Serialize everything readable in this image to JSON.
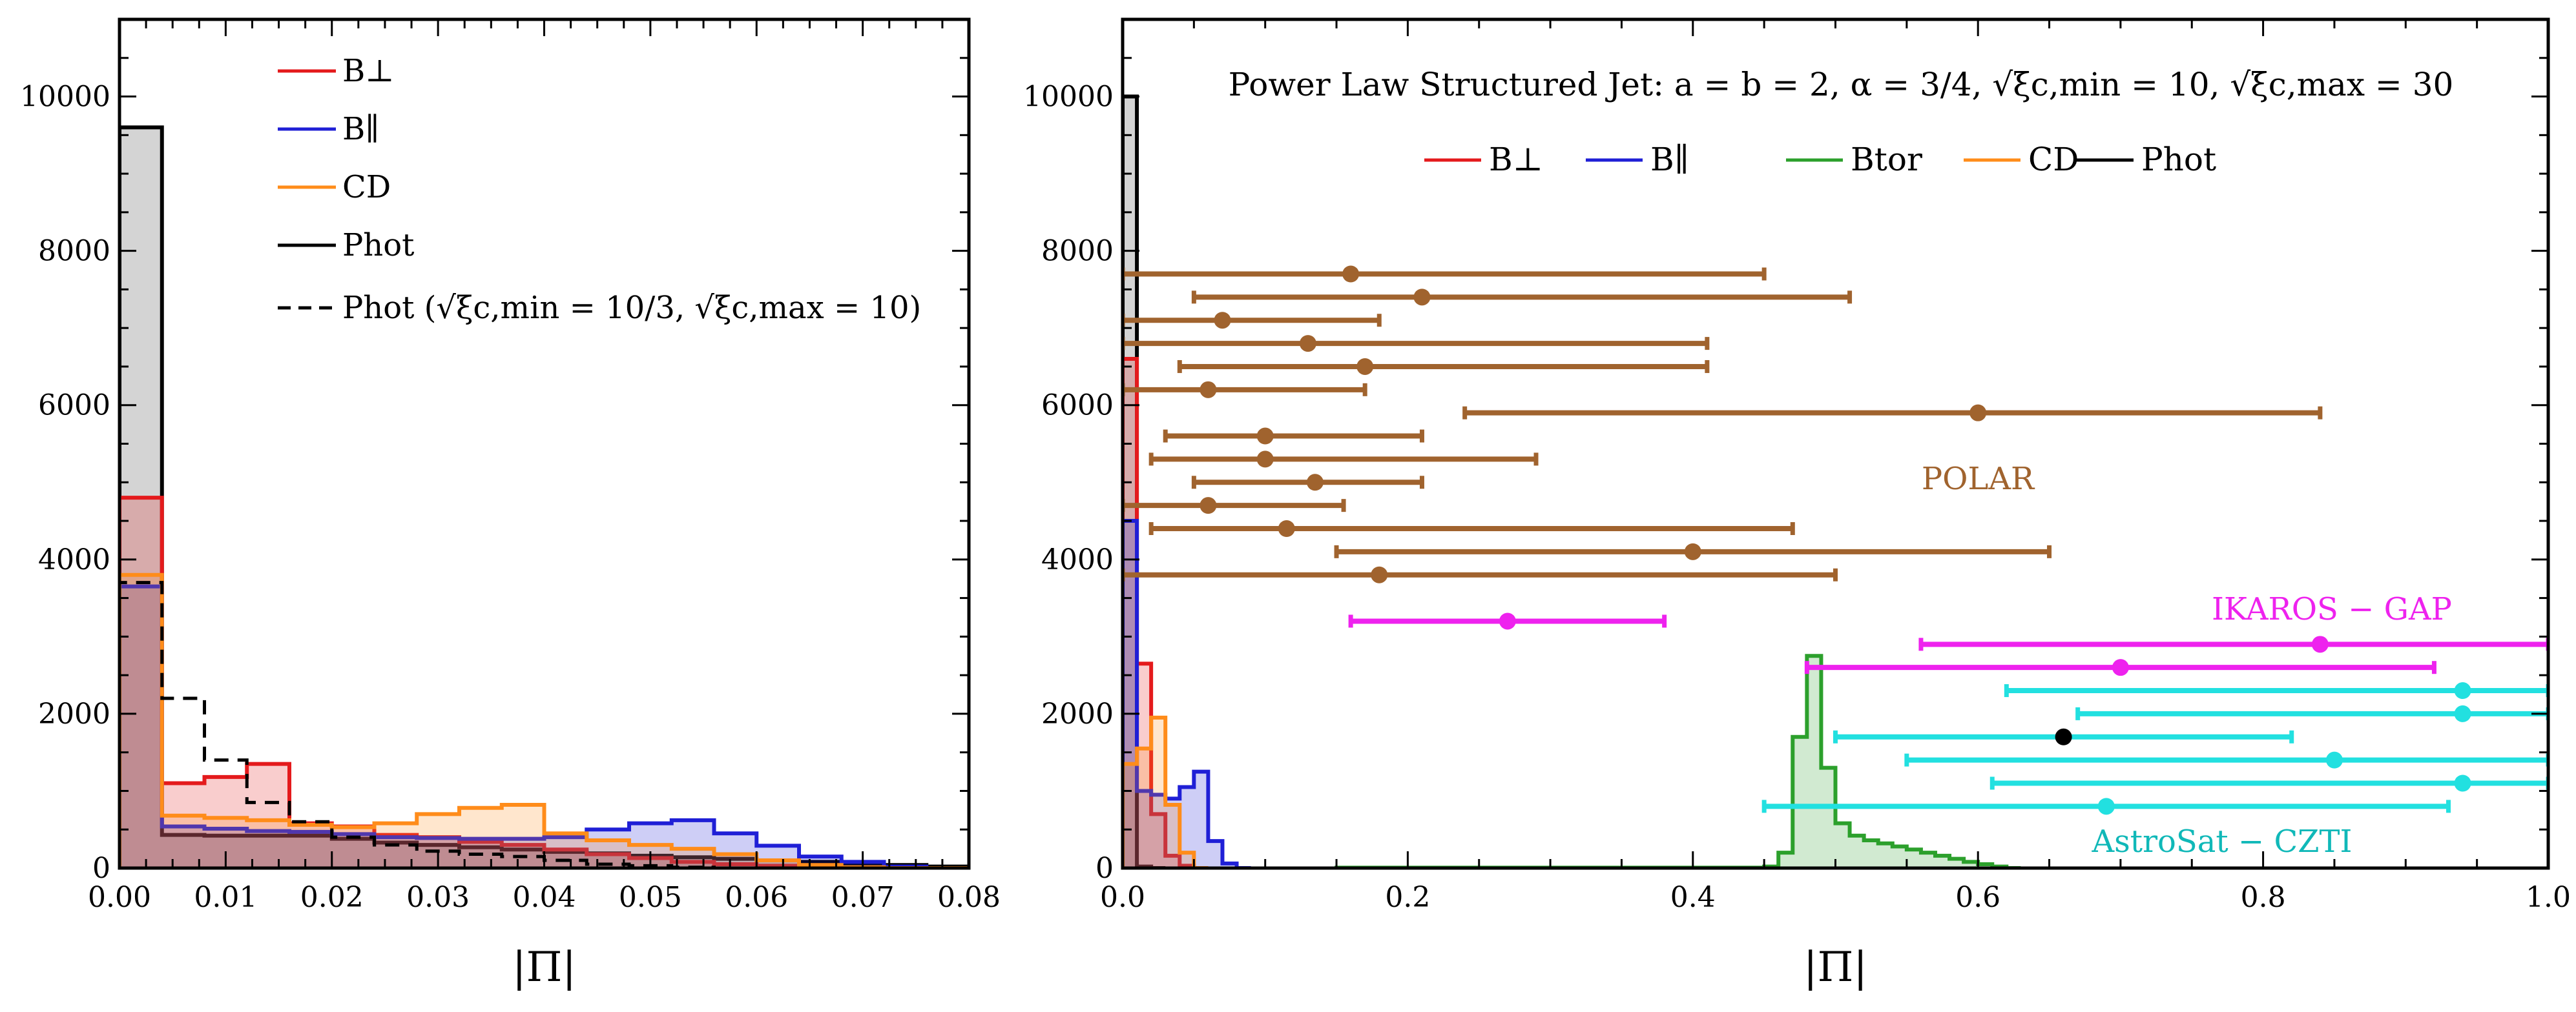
{
  "chart_data": [
    {
      "type": "histogram",
      "panel": "left",
      "xlabel": "|Π|",
      "ylabel": "",
      "xlim": [
        0,
        0.08
      ],
      "ylim": [
        0,
        11000
      ],
      "xticks": [
        "0.00",
        "0.01",
        "0.02",
        "0.03",
        "0.04",
        "0.05",
        "0.06",
        "0.07",
        "0.08"
      ],
      "yticks": [
        "0",
        "2000",
        "4000",
        "6000",
        "8000",
        "10000"
      ],
      "bin_width": 0.004,
      "legend": [
        {
          "label": "B⊥",
          "color": "#e41a1c",
          "style": "solid"
        },
        {
          "label": "B∥",
          "color": "#1f1fd6",
          "style": "solid"
        },
        {
          "label": "CD",
          "color": "#ff8c1a",
          "style": "solid"
        },
        {
          "label": "Phot",
          "color": "#000000",
          "style": "solid"
        },
        {
          "label": "Phot (√ξc,min = 10/3, √ξc,max = 10)",
          "color": "#000000",
          "style": "dashed"
        }
      ],
      "series": [
        {
          "name": "Phot",
          "color": "#000000",
          "fill": "#b0b0b0",
          "bins": [
            0,
            0.004
          ],
          "values": [
            9600,
            430,
            420,
            420,
            420,
            380,
            330,
            300,
            270,
            240,
            210,
            190,
            160,
            140,
            120,
            100,
            80,
            60,
            40,
            20,
            0
          ]
        },
        {
          "name": "B⊥",
          "color": "#e41a1c",
          "fill": "#e41a1c",
          "values": [
            4800,
            1100,
            1180,
            1350,
            580,
            540,
            430,
            400,
            340,
            300,
            240,
            180,
            130,
            80,
            50,
            30,
            10,
            0,
            0,
            0
          ]
        },
        {
          "name": "B∥",
          "color": "#1f1fd6",
          "fill": "#1f1fd6",
          "values": [
            3650,
            540,
            510,
            480,
            470,
            440,
            400,
            390,
            380,
            380,
            400,
            500,
            580,
            620,
            450,
            290,
            150,
            80,
            20,
            0
          ]
        },
        {
          "name": "CD",
          "color": "#ff8c1a",
          "fill": "#ff8c1a",
          "values": [
            3800,
            680,
            650,
            620,
            560,
            530,
            580,
            700,
            780,
            820,
            450,
            360,
            300,
            250,
            180,
            100,
            40,
            10,
            0,
            0
          ]
        },
        {
          "name": "Phot (dashed)",
          "color": "#000000",
          "fill": "none",
          "dashed": true,
          "values": [
            3700,
            2200,
            1400,
            850,
            600,
            400,
            300,
            220,
            180,
            150,
            100,
            50,
            30,
            10,
            0,
            0,
            0,
            0,
            0,
            0
          ]
        }
      ]
    },
    {
      "type": "histogram+errorbars",
      "panel": "right",
      "title": "Power Law Structured Jet: a = b = 2,  α = 3/4,  √ξc,min = 10,  √ξc,max = 30",
      "xlabel": "|Π|",
      "ylabel": "",
      "xlim": [
        0,
        1.0
      ],
      "ylim": [
        0,
        11000
      ],
      "xticks": [
        "0.0",
        "0.2",
        "0.4",
        "0.6",
        "0.8",
        "1.0"
      ],
      "yticks": [
        "0",
        "2000",
        "4000",
        "6000",
        "8000",
        "10000"
      ],
      "bin_width": 0.01,
      "legend": [
        {
          "label": "B⊥",
          "color": "#e41a1c"
        },
        {
          "label": "B∥",
          "color": "#1f1fd6"
        },
        {
          "label": "Btor",
          "color": "#2ca02c"
        },
        {
          "label": "CD",
          "color": "#ff8c1a"
        },
        {
          "label": "Phot",
          "color": "#000000"
        }
      ],
      "series": [
        {
          "name": "Phot",
          "color": "#000000",
          "fill": "#b0b0b0",
          "values": [
            10000,
            20,
            0
          ]
        },
        {
          "name": "B⊥",
          "color": "#e41a1c",
          "fill": "#e41a1c",
          "values": [
            6600,
            2650,
            700,
            160,
            30,
            0
          ]
        },
        {
          "name": "B∥",
          "color": "#1f1fd6",
          "fill": "#1f1fd6",
          "values": [
            4500,
            1000,
            950,
            900,
            1050,
            1250,
            350,
            60,
            0
          ]
        },
        {
          "name": "CD",
          "color": "#ff8c1a",
          "fill": "#ff8c1a",
          "values": [
            1350,
            1550,
            1950,
            820,
            200,
            0
          ]
        },
        {
          "name": "Btor",
          "color": "#2ca02c",
          "fill": "#2ca02c",
          "start": 0.15,
          "values": [
            5,
            5,
            5,
            5,
            5,
            5,
            5,
            5,
            5,
            5,
            5,
            5,
            5,
            5,
            5,
            5,
            5,
            5,
            5,
            5,
            5,
            5,
            5,
            5,
            5,
            5,
            5,
            5,
            5,
            5,
            20,
            200,
            1700,
            2750,
            1300,
            580,
            420,
            360,
            320,
            280,
            240,
            200,
            160,
            120,
            80,
            50,
            20,
            0
          ]
        }
      ],
      "observations": [
        {
          "instrument": "POLAR",
          "color": "#a0632e",
          "label": "POLAR",
          "points": [
            {
              "y": 7700,
              "x": 0.16,
              "xerr": [
                0.0,
                0.45
              ]
            },
            {
              "y": 7400,
              "x": 0.21,
              "xerr": [
                0.05,
                0.51
              ]
            },
            {
              "y": 7100,
              "x": 0.07,
              "xerr": [
                0.0,
                0.18
              ]
            },
            {
              "y": 6800,
              "x": 0.13,
              "xerr": [
                0.0,
                0.41
              ]
            },
            {
              "y": 6500,
              "x": 0.17,
              "xerr": [
                0.04,
                0.41
              ]
            },
            {
              "y": 6200,
              "x": 0.06,
              "xerr": [
                0.0,
                0.17
              ]
            },
            {
              "y": 5900,
              "x": 0.6,
              "xerr": [
                0.24,
                0.84
              ]
            },
            {
              "y": 5600,
              "x": 0.1,
              "xerr": [
                0.03,
                0.21
              ]
            },
            {
              "y": 5300,
              "x": 0.1,
              "xerr": [
                0.02,
                0.29
              ]
            },
            {
              "y": 5000,
              "x": 0.135,
              "xerr": [
                0.05,
                0.21
              ]
            },
            {
              "y": 4700,
              "x": 0.06,
              "xerr": [
                0.0,
                0.155
              ]
            },
            {
              "y": 4400,
              "x": 0.115,
              "xerr": [
                0.02,
                0.47
              ]
            },
            {
              "y": 4100,
              "x": 0.4,
              "xerr": [
                0.15,
                0.65
              ]
            },
            {
              "y": 3800,
              "x": 0.18,
              "xerr": [
                0.0,
                0.5
              ]
            }
          ]
        },
        {
          "instrument": "IKAROS - GAP",
          "color": "#ee22ee",
          "label": "IKAROS − GAP",
          "points": [
            {
              "y": 3200,
              "x": 0.27,
              "xerr": [
                0.16,
                0.38
              ]
            },
            {
              "y": 2900,
              "x": 0.84,
              "xerr": [
                0.56,
                1.0
              ]
            },
            {
              "y": 2600,
              "x": 0.7,
              "xerr": [
                0.48,
                0.92
              ]
            }
          ]
        },
        {
          "instrument": "AstroSat - CZTI",
          "color": "#22e0e0",
          "label": "AstroSat − CZTI",
          "points": [
            {
              "y": 2300,
              "x": 0.94,
              "xerr": [
                0.62,
                1.0
              ]
            },
            {
              "y": 2000,
              "x": 0.94,
              "xerr": [
                0.67,
                1.0
              ]
            },
            {
              "y": 1700,
              "x": 0.66,
              "xerr": [
                0.5,
                0.82
              ],
              "marker": "black"
            },
            {
              "y": 1400,
              "x": 0.85,
              "xerr": [
                0.55,
                1.0
              ]
            },
            {
              "y": 1100,
              "x": 0.94,
              "xerr": [
                0.61,
                1.0
              ]
            },
            {
              "y": 800,
              "x": 0.69,
              "xerr": [
                0.45,
                0.93
              ]
            }
          ]
        }
      ]
    }
  ]
}
